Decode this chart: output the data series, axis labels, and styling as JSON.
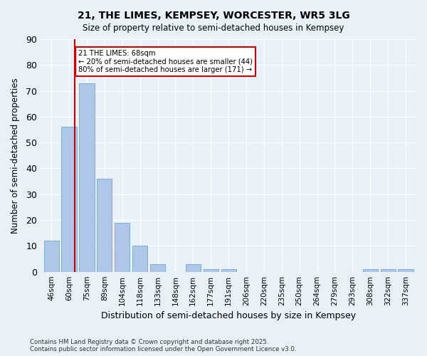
{
  "title1": "21, THE LIMES, KEMPSEY, WORCESTER, WR5 3LG",
  "title2": "Size of property relative to semi-detached houses in Kempsey",
  "xlabel": "Distribution of semi-detached houses by size in Kempsey",
  "ylabel": "Number of semi-detached properties",
  "bar_labels": [
    "46sqm",
    "60sqm",
    "75sqm",
    "89sqm",
    "104sqm",
    "118sqm",
    "133sqm",
    "148sqm",
    "162sqm",
    "177sqm",
    "191sqm",
    "206sqm",
    "220sqm",
    "235sqm",
    "250sqm",
    "264sqm",
    "279sqm",
    "293sqm",
    "308sqm",
    "322sqm",
    "337sqm"
  ],
  "bar_values": [
    12,
    56,
    73,
    36,
    19,
    10,
    3,
    0,
    3,
    1,
    1,
    0,
    0,
    0,
    0,
    0,
    0,
    0,
    1,
    1,
    1
  ],
  "bar_color": "#aec6e8",
  "bar_edgecolor": "#7bafd4",
  "background_color": "#e8f0f8",
  "grid_color": "#ffffff",
  "red_line_x": 1.33,
  "annotation_title": "21 THE LIMES: 68sqm",
  "annotation_line1": "← 20% of semi-detached houses are smaller (44)",
  "annotation_line2": "80% of semi-detached houses are larger (171) →",
  "annotation_box_color": "#ffffff",
  "annotation_border_color": "#cc0000",
  "red_line_color": "#cc0000",
  "ylim": [
    0,
    90
  ],
  "yticks": [
    0,
    10,
    20,
    30,
    40,
    50,
    60,
    70,
    80,
    90
  ],
  "footnote1": "Contains HM Land Registry data © Crown copyright and database right 2025.",
  "footnote2": "Contains public sector information licensed under the Open Government Licence v3.0."
}
